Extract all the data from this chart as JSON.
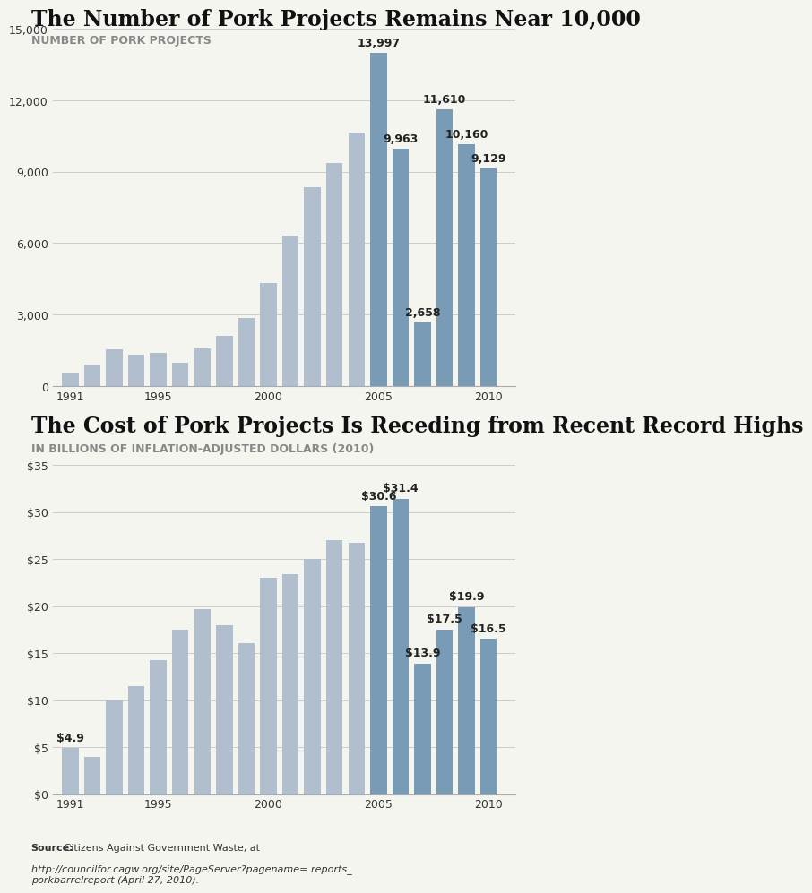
{
  "chart1": {
    "title": "The Number of Pork Projects Remains Near 10,000",
    "subtitle": "NUMBER OF PORK PROJECTS",
    "years": [
      1991,
      1992,
      1993,
      1994,
      1995,
      1996,
      1997,
      1998,
      1999,
      2000,
      2001,
      2002,
      2003,
      2004,
      2005,
      2006,
      2007,
      2008,
      2009,
      2010
    ],
    "values": [
      546,
      892,
      1551,
      1318,
      1406,
      958,
      1596,
      2100,
      2838,
      4326,
      6333,
      8341,
      9362,
      10656,
      13997,
      9963,
      2658,
      11610,
      10160,
      9129
    ],
    "highlighted": [
      2005,
      2006,
      2007,
      2008,
      2009,
      2010
    ],
    "highlighted_labels": {
      "2005": "13,997",
      "2006": "9,963",
      "2007": "2,658",
      "2008": "11,610",
      "2009": "10,160",
      "2010": "9,129"
    },
    "color_normal": "#b0bece",
    "color_highlight": "#7a9bb5",
    "ylim": [
      0,
      15000
    ],
    "yticks": [
      0,
      3000,
      6000,
      9000,
      12000,
      15000
    ]
  },
  "chart2": {
    "title": "The Cost of Pork Projects Is Receding from Recent Record Highs",
    "subtitle": "IN BILLIONS OF INFLATION-ADJUSTED DOLLARS (2010)",
    "years": [
      1991,
      1992,
      1993,
      1994,
      1995,
      1996,
      1997,
      1998,
      1999,
      2000,
      2001,
      2002,
      2003,
      2004,
      2005,
      2006,
      2007,
      2008,
      2009,
      2010
    ],
    "values": [
      4.9,
      4.0,
      10.0,
      11.5,
      14.3,
      17.5,
      19.7,
      18.0,
      16.1,
      23.0,
      23.4,
      25.0,
      27.0,
      26.7,
      30.6,
      31.4,
      13.9,
      17.5,
      19.9,
      16.5
    ],
    "highlighted": [
      2005,
      2006,
      2007,
      2008,
      2009,
      2010
    ],
    "highlighted_labels": {
      "1991": "$4.9",
      "2005": "$30.6",
      "2006": "$31.4",
      "2007": "$13.9",
      "2008": "$17.5",
      "2009": "$19.9",
      "2010": "$16.5"
    },
    "color_normal": "#b0bece",
    "color_highlight": "#7a9bb5",
    "ylim": [
      0,
      35
    ],
    "yticks": [
      0,
      5,
      10,
      15,
      20,
      25,
      30,
      35
    ]
  },
  "source_bold": "Source:",
  "source_normal": " Citizens Against Government Waste, at ",
  "source_italic": "http://councilfor.cagw.org/site/PageServer?pagename= reports_\nporkbarrelreport",
  "source_end": " (April 27, 2010).",
  "bg_color": "#f5f5f0",
  "title_fontsize": 17,
  "subtitle_fontsize": 9,
  "label_fontsize": 9,
  "tick_fontsize": 9,
  "source_fontsize": 8
}
